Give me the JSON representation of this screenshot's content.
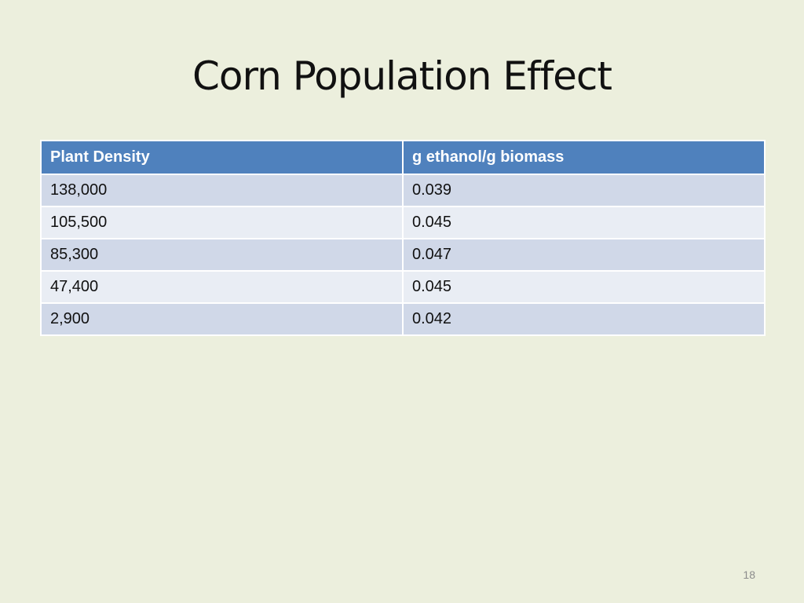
{
  "slide": {
    "title": "Corn Population Effect",
    "page_number": "18"
  },
  "table": {
    "headers": [
      "Plant Density",
      "g ethanol/g biomass"
    ],
    "rows": [
      [
        "138,000",
        "0.039"
      ],
      [
        "105,500",
        "0.045"
      ],
      [
        "85,300",
        "0.047"
      ],
      [
        "47,400",
        "0.045"
      ],
      [
        "2,900",
        "0.042"
      ]
    ]
  },
  "colors": {
    "background": "#ECEFDD",
    "header": "#4F81BD",
    "row_band_dark": "#D0D8E8",
    "row_band_light": "#E9EDF4"
  }
}
